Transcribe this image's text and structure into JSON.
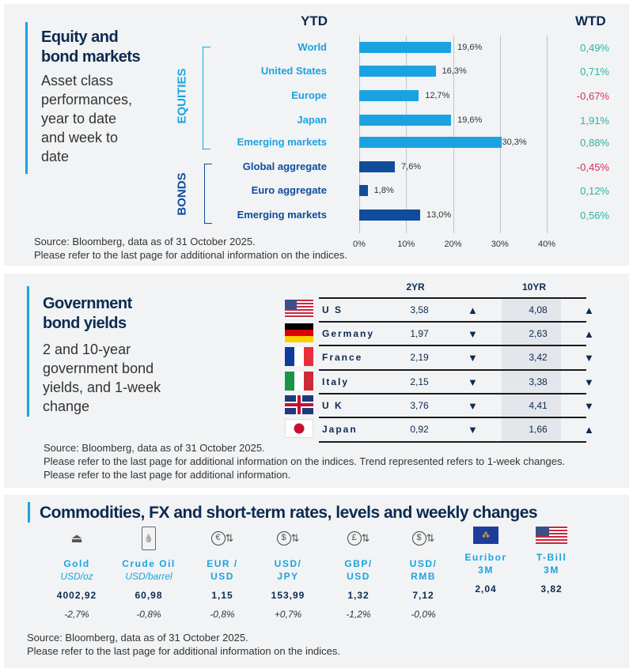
{
  "equity": {
    "title": [
      "Equity and",
      "bond markets"
    ],
    "subtitle": "Asset class performances, year to date and week to date",
    "ytd_header": "YTD",
    "wtd_header": "WTD",
    "group_equities": "EQUITIES",
    "group_bonds": "BONDS",
    "source": "Source: Bloomberg, data as of 31 October 2025.",
    "note": "Please refer to the last page for additional information on the indices."
  },
  "chart_data": {
    "type": "bar",
    "orientation": "horizontal",
    "categories": [
      "World",
      "United States",
      "Europe",
      "Japan",
      "Emerging  markets",
      "Global aggregate",
      "Euro aggregate",
      "Emerging  markets"
    ],
    "groups": [
      "EQUITIES",
      "EQUITIES",
      "EQUITIES",
      "EQUITIES",
      "EQUITIES",
      "BONDS",
      "BONDS",
      "BONDS"
    ],
    "values": [
      19.6,
      16.3,
      12.7,
      19.6,
      30.3,
      7.6,
      1.8,
      13.0
    ],
    "value_labels": [
      "19,6%",
      "16,3%",
      "12,7%",
      "19,6%",
      "30,3%",
      "7,6%",
      "1,8%",
      "13,0%"
    ],
    "wtd": [
      "0,49%",
      "0,71%",
      "-0,67%",
      "1,91%",
      "0,88%",
      "-0,45%",
      "0,12%",
      "0,56%"
    ],
    "xlim": [
      0,
      40
    ],
    "xticks": [
      "0%",
      "10%",
      "20%",
      "30%",
      "40%"
    ],
    "grid": true,
    "colors": {
      "equities": "#1aa3e0",
      "bonds": "#0f4c9c",
      "positive": "#2bb5a0",
      "negative": "#d6305a"
    }
  },
  "bonds": {
    "title": [
      "Government",
      "bond yields"
    ],
    "subtitle": "2 and 10-year government bond yields, and 1-week change",
    "col_2yr": "2YR",
    "col_10yr": "10YR",
    "rows": [
      {
        "country": "U S",
        "flag": "us",
        "y2": "3,58",
        "t2": "up",
        "y10": "4,08",
        "t10": "up"
      },
      {
        "country": "Germany",
        "flag": "de",
        "y2": "1,97",
        "t2": "down",
        "y10": "2,63",
        "t10": "up"
      },
      {
        "country": "France",
        "flag": "fr",
        "y2": "2,19",
        "t2": "down",
        "y10": "3,42",
        "t10": "down"
      },
      {
        "country": "Italy",
        "flag": "it",
        "y2": "2,15",
        "t2": "down",
        "y10": "3,38",
        "t10": "down"
      },
      {
        "country": "U K",
        "flag": "uk",
        "y2": "3,76",
        "t2": "down",
        "y10": "4,41",
        "t10": "down"
      },
      {
        "country": "Japan",
        "flag": "jp",
        "y2": "0,92",
        "t2": "down",
        "y10": "1,66",
        "t10": "up"
      }
    ],
    "source": "Source: Bloomberg, data as of 31 October 2025.",
    "note": "Please refer to the last page for additional information on the indices. Trend represented refers to 1-week changes. Please refer to the last page for additional information."
  },
  "commodities": {
    "title": "Commodities, FX and short-term rates, levels and weekly changes",
    "items": [
      {
        "icon": "gold-bars-icon",
        "name": "Gold",
        "unit": "USD/oz",
        "value": "4002,92",
        "change": "-2,7%"
      },
      {
        "icon": "oil-barrel-icon",
        "name": "Crude Oil",
        "unit": "USD/barrel",
        "value": "60,98",
        "change": "-0,8%"
      },
      {
        "icon": "currency-exchange-icon",
        "name": "EUR /",
        "name2": "USD",
        "glyph": "€",
        "value": "1,15",
        "change": "-0,8%"
      },
      {
        "icon": "currency-exchange-icon",
        "name": "USD/",
        "name2": "JPY",
        "glyph": "$",
        "value": "153,99",
        "change": "+0,7%"
      },
      {
        "icon": "currency-exchange-icon",
        "name": "GBP/",
        "name2": "USD",
        "glyph": "£",
        "value": "1,32",
        "change": "-1,2%"
      },
      {
        "icon": "currency-exchange-icon",
        "name": "USD/",
        "name2": "RMB",
        "glyph": "$",
        "value": "7,12",
        "change": "-0,0%"
      },
      {
        "icon": "eu-flag-icon",
        "name": "Euribor",
        "name2": "3M",
        "value": "2,04",
        "change": ""
      },
      {
        "icon": "us-flag-icon",
        "name": "T-Bill",
        "name2": "3M",
        "value": "3,82",
        "change": ""
      }
    ],
    "source": "Source: Bloomberg, data as of 31 October 2025.",
    "note": "Please refer to the last page for additional information on the indices."
  }
}
